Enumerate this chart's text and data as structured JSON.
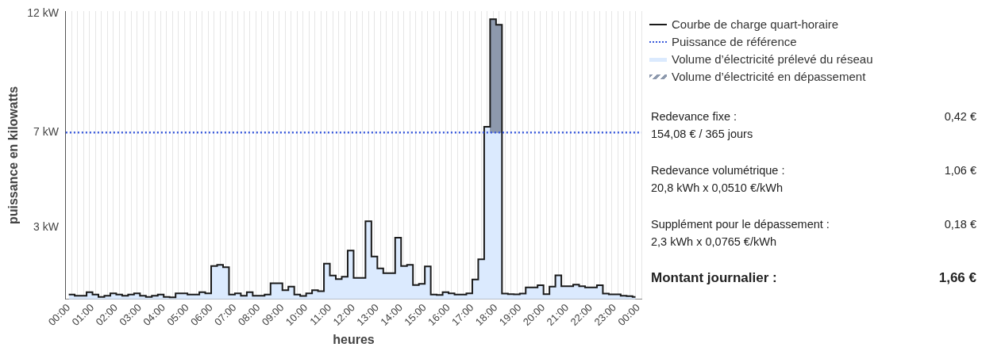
{
  "chart_data": [
    {
      "type": "line",
      "xlabel": "heures",
      "ylabel": "puissance en kilowatts",
      "x": [
        0.125,
        0.375,
        0.625,
        0.875,
        1.125,
        1.375,
        1.625,
        1.875,
        2.125,
        2.375,
        2.625,
        2.875,
        3.125,
        3.375,
        3.625,
        3.875,
        4.125,
        4.375,
        4.625,
        4.875,
        5.125,
        5.375,
        5.625,
        5.875,
        6.125,
        6.375,
        6.625,
        6.875,
        7.125,
        7.375,
        7.625,
        7.875,
        8.125,
        8.375,
        8.625,
        8.875,
        9.125,
        9.375,
        9.625,
        9.875,
        10.125,
        10.375,
        10.625,
        10.875,
        11.125,
        11.375,
        11.625,
        11.875,
        12.125,
        12.375,
        12.625,
        12.875,
        13.125,
        13.375,
        13.625,
        13.875,
        14.125,
        14.375,
        14.625,
        14.875,
        15.125,
        15.375,
        15.625,
        15.875,
        16.125,
        16.375,
        16.625,
        16.875,
        17.125,
        17.375,
        17.625,
        17.875,
        18.125,
        18.375,
        18.625,
        18.875,
        19.125,
        19.375,
        19.625,
        19.875,
        20.125,
        20.375,
        20.625,
        20.875,
        21.125,
        21.375,
        21.625,
        21.875,
        22.125,
        22.375,
        22.625,
        22.875,
        23.125,
        23.375,
        23.625,
        23.875
      ],
      "series": [
        {
          "name": "Courbe de charge quart-horaire",
          "type": "step",
          "color": "#1a1a1a",
          "values": [
            0.2,
            0.15,
            0.15,
            0.3,
            0.2,
            0.1,
            0.15,
            0.25,
            0.2,
            0.15,
            0.2,
            0.25,
            0.15,
            0.1,
            0.15,
            0.2,
            0.1,
            0.08,
            0.25,
            0.25,
            0.2,
            0.2,
            0.3,
            0.25,
            1.4,
            1.45,
            1.35,
            0.2,
            0.25,
            0.15,
            0.3,
            0.15,
            0.15,
            0.2,
            0.67,
            0.67,
            0.38,
            0.53,
            0.2,
            0.14,
            0.25,
            0.38,
            0.34,
            1.5,
            1.0,
            0.85,
            0.95,
            2.05,
            0.9,
            0.9,
            3.28,
            1.8,
            1.3,
            1.1,
            1.1,
            2.59,
            1.4,
            1.45,
            0.6,
            0.65,
            1.38,
            0.2,
            0.18,
            0.3,
            0.25,
            0.2,
            0.2,
            0.25,
            0.83,
            1.68,
            7.24,
            11.76,
            11.53,
            0.24,
            0.22,
            0.21,
            0.24,
            0.5,
            0.5,
            0.59,
            0.22,
            0.53,
            1.01,
            0.55,
            0.55,
            0.62,
            0.55,
            0.5,
            0.5,
            0.59,
            0.24,
            0.21,
            0.21,
            0.15,
            0.13,
            0.1
          ]
        },
        {
          "name": "Volume d’électricité prélevé du réseau",
          "type": "area",
          "color": "#dbeafe",
          "values": [
            0.2,
            0.15,
            0.15,
            0.3,
            0.2,
            0.1,
            0.15,
            0.25,
            0.2,
            0.15,
            0.2,
            0.25,
            0.15,
            0.1,
            0.15,
            0.2,
            0.1,
            0.08,
            0.25,
            0.25,
            0.2,
            0.2,
            0.3,
            0.25,
            1.4,
            1.45,
            1.35,
            0.2,
            0.25,
            0.15,
            0.3,
            0.15,
            0.15,
            0.2,
            0.67,
            0.67,
            0.38,
            0.53,
            0.2,
            0.14,
            0.25,
            0.38,
            0.34,
            1.5,
            1.0,
            0.85,
            0.95,
            2.05,
            0.9,
            0.9,
            3.28,
            1.8,
            1.3,
            1.1,
            1.1,
            2.59,
            1.4,
            1.45,
            0.6,
            0.65,
            1.38,
            0.2,
            0.18,
            0.3,
            0.25,
            0.2,
            0.2,
            0.25,
            0.83,
            1.68,
            7.24,
            11.76,
            11.53,
            0.24,
            0.22,
            0.21,
            0.24,
            0.5,
            0.5,
            0.59,
            0.22,
            0.53,
            1.01,
            0.55,
            0.55,
            0.62,
            0.55,
            0.5,
            0.5,
            0.59,
            0.24,
            0.21,
            0.21,
            0.15,
            0.13,
            0.1
          ]
        },
        {
          "name": "Volume d’électricité en dépassement",
          "type": "bar",
          "color": "#8d99ad",
          "x": [
            17.875,
            18.125
          ],
          "base": [
            7,
            7
          ],
          "values": [
            4.76,
            4.53
          ]
        }
      ],
      "ref_lines": [
        {
          "axis": "y",
          "value": 7,
          "label": "Puissance de référence",
          "color": "#3b5bdb",
          "line_style": "dotted"
        }
      ],
      "xlim": [
        0,
        24
      ],
      "xticks": [
        {
          "value": 0,
          "label": "00:00"
        },
        {
          "value": 0.25,
          "label": null
        },
        {
          "value": 0.5,
          "label": null
        },
        {
          "value": 0.75,
          "label": null
        },
        {
          "value": 1,
          "label": "01:00"
        },
        {
          "value": 1.25,
          "label": null
        },
        {
          "value": 1.5,
          "label": null
        },
        {
          "value": 1.75,
          "label": null
        },
        {
          "value": 2,
          "label": "02:00"
        },
        {
          "value": 2.25,
          "label": null
        },
        {
          "value": 2.5,
          "label": null
        },
        {
          "value": 2.75,
          "label": null
        },
        {
          "value": 3,
          "label": "03:00"
        },
        {
          "value": 3.25,
          "label": null
        },
        {
          "value": 3.5,
          "label": null
        },
        {
          "value": 3.75,
          "label": null
        },
        {
          "value": 4,
          "label": "04:00"
        },
        {
          "value": 4.25,
          "label": null
        },
        {
          "value": 4.5,
          "label": null
        },
        {
          "value": 4.75,
          "label": null
        },
        {
          "value": 5,
          "label": "05:00"
        },
        {
          "value": 5.25,
          "label": null
        },
        {
          "value": 5.5,
          "label": null
        },
        {
          "value": 5.75,
          "label": null
        },
        {
          "value": 6,
          "label": "06:00"
        },
        {
          "value": 6.25,
          "label": null
        },
        {
          "value": 6.5,
          "label": null
        },
        {
          "value": 6.75,
          "label": null
        },
        {
          "value": 7,
          "label": "07:00"
        },
        {
          "value": 7.25,
          "label": null
        },
        {
          "value": 7.5,
          "label": null
        },
        {
          "value": 7.75,
          "label": null
        },
        {
          "value": 8,
          "label": "08:00"
        },
        {
          "value": 8.25,
          "label": null
        },
        {
          "value": 8.5,
          "label": null
        },
        {
          "value": 8.75,
          "label": null
        },
        {
          "value": 9,
          "label": "09:00"
        },
        {
          "value": 9.25,
          "label": null
        },
        {
          "value": 9.5,
          "label": null
        },
        {
          "value": 9.75,
          "label": null
        },
        {
          "value": 10,
          "label": "10:00"
        },
        {
          "value": 10.25,
          "label": null
        },
        {
          "value": 10.5,
          "label": null
        },
        {
          "value": 10.75,
          "label": null
        },
        {
          "value": 11,
          "label": "11:00"
        },
        {
          "value": 11.25,
          "label": null
        },
        {
          "value": 11.5,
          "label": null
        },
        {
          "value": 11.75,
          "label": null
        },
        {
          "value": 12,
          "label": "12:00"
        },
        {
          "value": 12.25,
          "label": null
        },
        {
          "value": 12.5,
          "label": null
        },
        {
          "value": 12.75,
          "label": null
        },
        {
          "value": 13,
          "label": "13:00"
        },
        {
          "value": 13.25,
          "label": null
        },
        {
          "value": 13.5,
          "label": null
        },
        {
          "value": 13.75,
          "label": null
        },
        {
          "value": 14,
          "label": "14:00"
        },
        {
          "value": 14.25,
          "label": null
        },
        {
          "value": 14.5,
          "label": null
        },
        {
          "value": 14.75,
          "label": null
        },
        {
          "value": 15,
          "label": "15:00"
        },
        {
          "value": 15.25,
          "label": null
        },
        {
          "value": 15.5,
          "label": null
        },
        {
          "value": 15.75,
          "label": null
        },
        {
          "value": 16,
          "label": "16:00"
        },
        {
          "value": 16.25,
          "label": null
        },
        {
          "value": 16.5,
          "label": null
        },
        {
          "value": 16.75,
          "label": null
        },
        {
          "value": 17,
          "label": "17:00"
        },
        {
          "value": 17.25,
          "label": null
        },
        {
          "value": 17.5,
          "label": null
        },
        {
          "value": 17.75,
          "label": null
        },
        {
          "value": 18,
          "label": "18:00"
        },
        {
          "value": 18.25,
          "label": null
        },
        {
          "value": 18.5,
          "label": null
        },
        {
          "value": 18.75,
          "label": null
        },
        {
          "value": 19,
          "label": "19:00"
        },
        {
          "value": 19.25,
          "label": null
        },
        {
          "value": 19.5,
          "label": null
        },
        {
          "value": 19.75,
          "label": null
        },
        {
          "value": 20,
          "label": "20:00"
        },
        {
          "value": 20.25,
          "label": null
        },
        {
          "value": 20.5,
          "label": null
        },
        {
          "value": 20.75,
          "label": null
        },
        {
          "value": 21,
          "label": "21:00"
        },
        {
          "value": 21.25,
          "label": null
        },
        {
          "value": 21.5,
          "label": null
        },
        {
          "value": 21.75,
          "label": null
        },
        {
          "value": 22,
          "label": "22:00"
        },
        {
          "value": 22.25,
          "label": null
        },
        {
          "value": 22.5,
          "label": null
        },
        {
          "value": 22.75,
          "label": null
        },
        {
          "value": 23,
          "label": "23:00"
        },
        {
          "value": 23.25,
          "label": null
        },
        {
          "value": 23.5,
          "label": null
        },
        {
          "value": 23.75,
          "label": null
        },
        {
          "value": 24,
          "label": "00:00"
        }
      ],
      "ylim": [
        0,
        12.1
      ],
      "yticks": [
        {
          "value": 0,
          "label": null
        },
        {
          "value": 3,
          "label": "3 kW"
        },
        {
          "value": 7,
          "label": "7 kW"
        },
        {
          "value": 12,
          "label": "12 kW"
        }
      ],
      "grid": "x",
      "legend": "top right"
    },
    {
      "type": "other",
      "annotations": [
        "Redevance fixe :",
        "0,42 €",
        "154,08 € / 365 jours",
        "Redevance volumétrique :",
        "1,06 €",
        "20,8 kWh x 0,0510 €/kWh",
        "Supplément pour le dépassement :",
        "0,18 €",
        "2,3 kWh x 0,0765 €/kWh",
        "Montant journalier :",
        "1,66 €"
      ]
    }
  ]
}
